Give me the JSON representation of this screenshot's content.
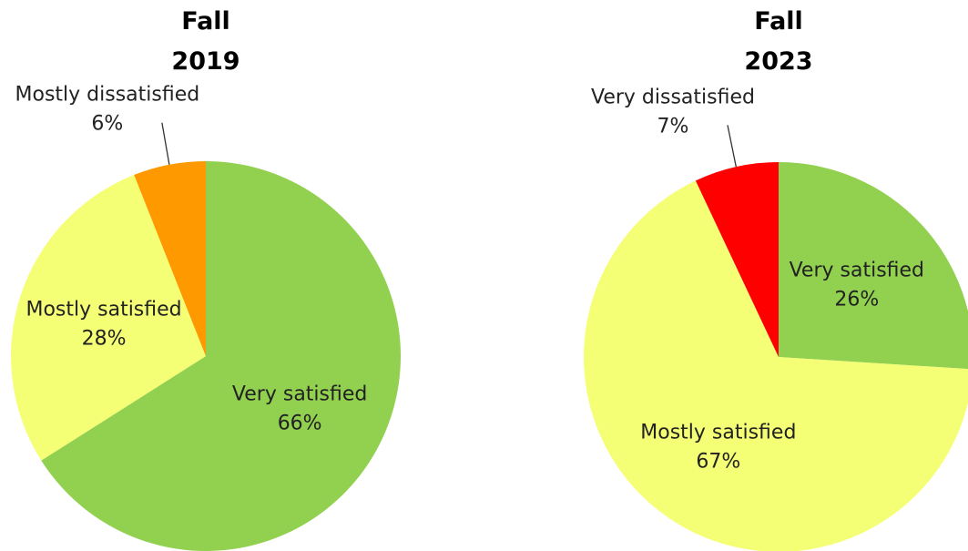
{
  "chart_data": [
    {
      "type": "pie",
      "title": "Fall 2019",
      "categories": [
        "Very satisfied",
        "Mostly satisfied",
        "Mostly dissatisfied"
      ],
      "values": [
        66,
        28,
        6
      ],
      "value_labels": [
        "66%",
        "28%",
        "6%"
      ],
      "colors": [
        "#92d050",
        "#f4ff75",
        "#ff9900"
      ]
    },
    {
      "type": "pie",
      "title": "Fall 2023",
      "categories": [
        "Very satisfied",
        "Mostly satisfied",
        "Very dissatisfied"
      ],
      "values": [
        26,
        67,
        7
      ],
      "value_labels": [
        "26%",
        "67%",
        "7%"
      ],
      "colors": [
        "#92d050",
        "#f4ff75",
        "#ff0000"
      ]
    }
  ]
}
